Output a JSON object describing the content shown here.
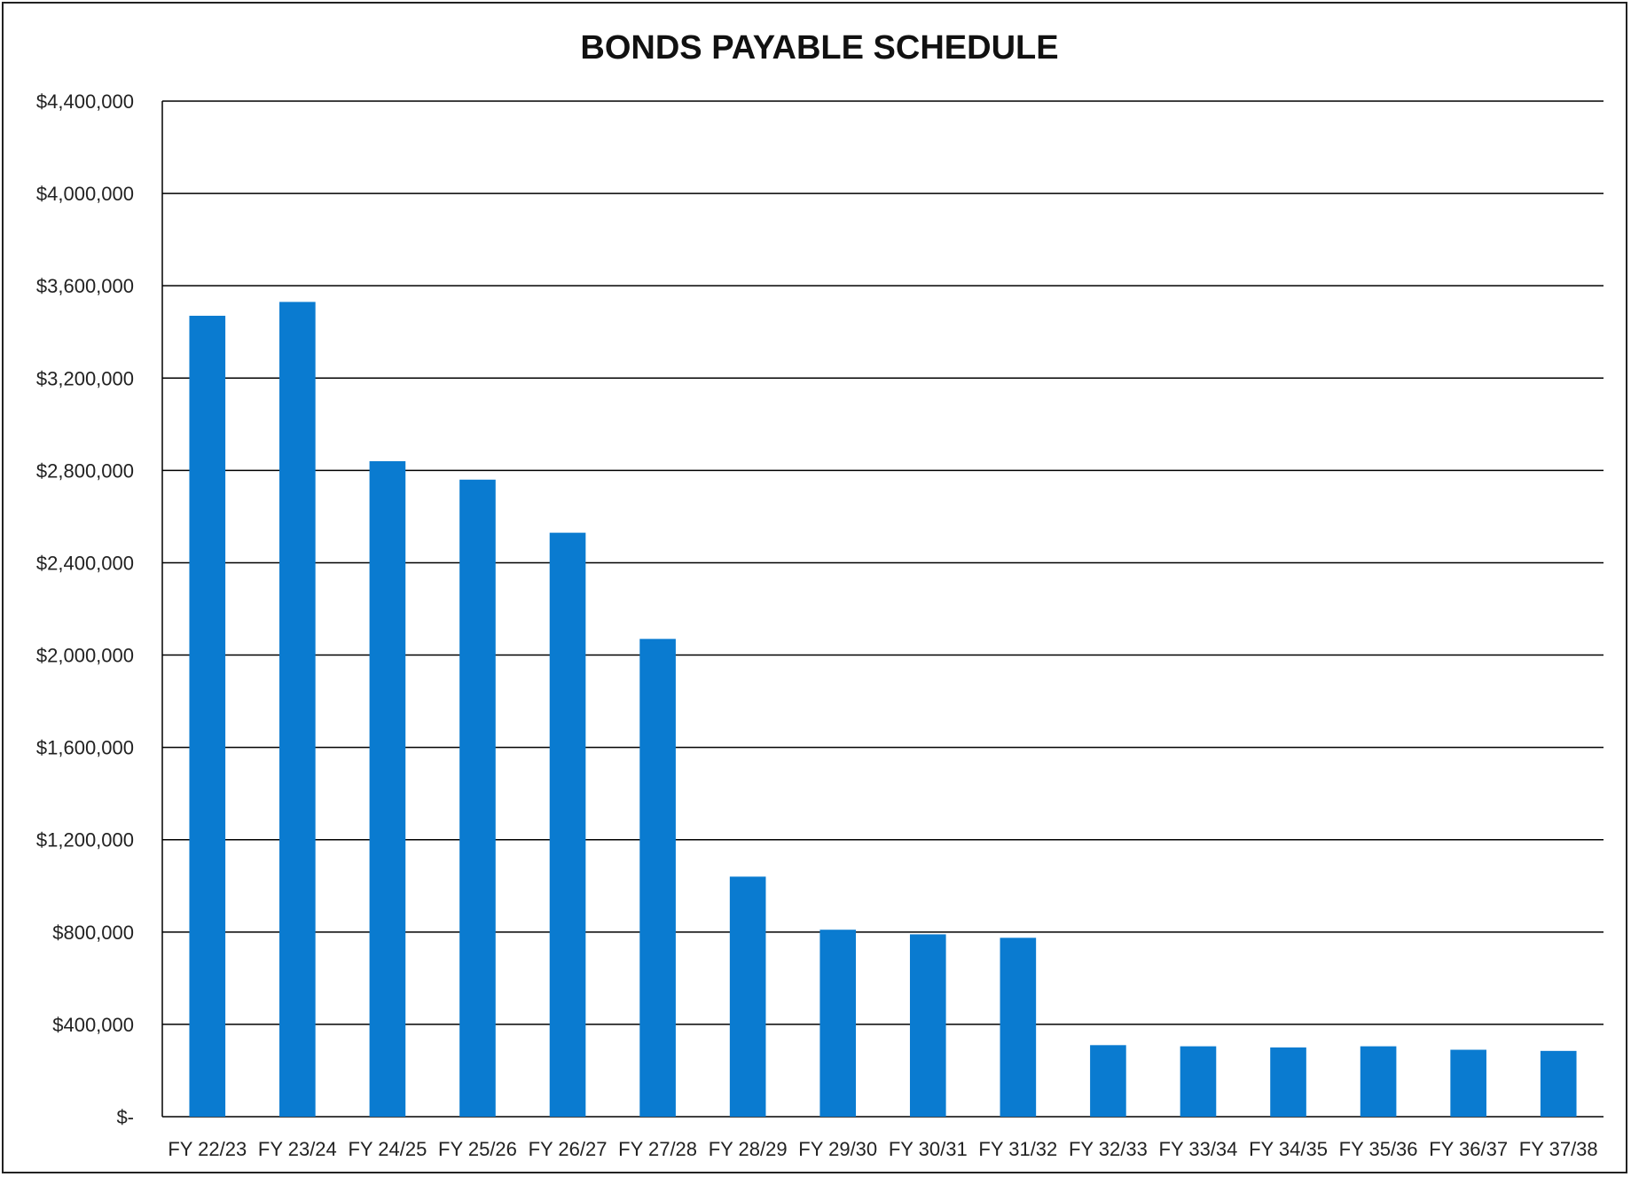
{
  "chart_data": {
    "type": "bar",
    "title": "BONDS PAYABLE SCHEDULE",
    "xlabel": "",
    "ylabel": "",
    "categories": [
      "FY 22/23",
      "FY 23/24",
      "FY 24/25",
      "FY 25/26",
      "FY 26/27",
      "FY 27/28",
      "FY 28/29",
      "FY 29/30",
      "FY 30/31",
      "FY 31/32",
      "FY 32/33",
      "FY 33/34",
      "FY 34/35",
      "FY 35/36",
      "FY 36/37",
      "FY 37/38"
    ],
    "values": [
      3470000,
      3530000,
      2840000,
      2760000,
      2530000,
      2070000,
      1040000,
      810000,
      790000,
      775000,
      310000,
      305000,
      300000,
      305000,
      290000,
      285000
    ],
    "ylim": [
      0,
      4400000
    ],
    "yticks": [
      0,
      400000,
      800000,
      1200000,
      1600000,
      2000000,
      2400000,
      2800000,
      3200000,
      3600000,
      4000000,
      4400000
    ],
    "ytick_labels": [
      "$-",
      "$400,000",
      "$800,000",
      "$1,200,000",
      "$1,600,000",
      "$2,000,000",
      "$2,400,000",
      "$2,800,000",
      "$3,200,000",
      "$3,600,000",
      "$4,000,000",
      "$4,400,000"
    ],
    "grid": true,
    "legend": "none",
    "bar_color": "#0a7bd0",
    "gridline_color": "#000000"
  }
}
